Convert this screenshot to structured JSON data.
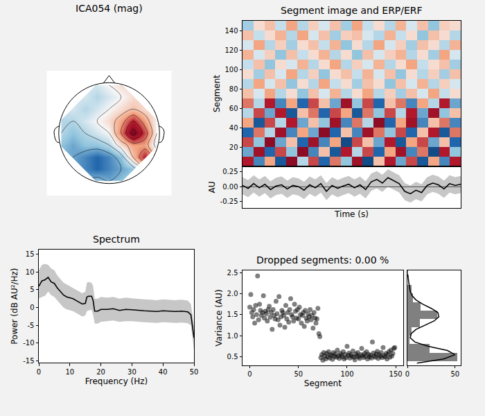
{
  "chart_data": [
    {
      "type": "contour",
      "title": "ICA054 (mag)",
      "tick_labels": false,
      "xlim": [
        -1.3,
        1.3
      ],
      "ylim": [
        -1.3,
        1.3
      ],
      "zlim": [
        -1,
        1
      ],
      "x": [
        -1,
        -0.75,
        -0.5,
        -0.25,
        0,
        0.25,
        0.5,
        0.75,
        1
      ],
      "y": [
        -1,
        -0.75,
        -0.5,
        -0.25,
        0,
        0.25,
        0.5,
        0.75,
        1
      ],
      "cells": [
        [
          null,
          null,
          null,
          -0.3,
          -0.4,
          -0.3,
          null,
          null,
          null
        ],
        [
          null,
          null,
          -0.5,
          -0.6,
          -0.5,
          -0.4,
          -0.3,
          null,
          null
        ],
        [
          null,
          -0.4,
          -0.5,
          -0.6,
          -0.5,
          -0.3,
          0.2,
          0.6,
          null
        ],
        [
          -0.3,
          -0.4,
          -0.3,
          -0.3,
          -0.2,
          0.1,
          0.3,
          0.3,
          -0.1
        ],
        [
          -0.2,
          -0.3,
          -0.2,
          -0.1,
          0.0,
          0.4,
          0.9,
          0.5,
          0.0
        ],
        [
          -0.2,
          -0.2,
          -0.1,
          0.0,
          0.1,
          0.3,
          0.6,
          0.3,
          0.0
        ],
        [
          null,
          -0.1,
          -0.2,
          -0.1,
          0.0,
          0.1,
          0.2,
          0.1,
          null
        ],
        [
          null,
          null,
          -0.1,
          -0.2,
          -0.1,
          0.0,
          0.1,
          null,
          null
        ],
        [
          null,
          null,
          null,
          -0.1,
          0.0,
          0.1,
          null,
          null,
          null
        ]
      ]
    },
    {
      "type": "heatmap",
      "title": "Segment image and ERP/ERF",
      "ylabel": "Segment",
      "tick_labels": "y",
      "xlim": [
        -0.5,
        19.5
      ],
      "ylim": [
        0,
        150
      ],
      "yticks": [
        20,
        40,
        60,
        80,
        100,
        120,
        140
      ],
      "zlim": [
        -1,
        1
      ],
      "x": [
        0,
        1,
        2,
        3,
        4,
        5,
        6,
        7,
        8,
        9,
        10,
        11,
        12,
        13,
        14,
        15,
        16,
        17,
        18,
        19
      ],
      "y": [
        5,
        15,
        25,
        35,
        45,
        55,
        65,
        75,
        85,
        95,
        105,
        115,
        125,
        135,
        145
      ],
      "cells": [
        [
          0.6,
          -0.5,
          0.3,
          -0.7,
          0.8,
          -0.2,
          0.5,
          -0.6,
          0.4,
          -0.3,
          0.7,
          -0.8,
          0.2,
          0.6,
          -0.4,
          0.5,
          -0.7,
          0.3,
          -0.5,
          0.6
        ],
        [
          -0.4,
          0.7,
          -0.6,
          0.5,
          -0.3,
          0.8,
          -0.5,
          0.2,
          -0.7,
          0.6,
          -0.2,
          0.5,
          -0.6,
          0.3,
          0.7,
          -0.5,
          0.4,
          -0.8,
          0.6,
          -0.3
        ],
        [
          0.5,
          -0.3,
          0.8,
          -0.4,
          0.2,
          -0.6,
          0.7,
          -0.5,
          0.3,
          -0.8,
          0.5,
          0.2,
          -0.4,
          0.6,
          -0.7,
          0.3,
          0.5,
          -0.4,
          0.2,
          -0.6
        ],
        [
          -0.6,
          0.4,
          -0.2,
          0.7,
          -0.5,
          0.3,
          -0.4,
          0.8,
          -0.6,
          0.2,
          -0.5,
          0.7,
          0.4,
          -0.3,
          0.5,
          -0.6,
          0.2,
          0.6,
          -0.7,
          0.4
        ],
        [
          0.3,
          -0.7,
          0.5,
          -0.2,
          0.6,
          -0.4,
          0.2,
          -0.3,
          0.7,
          -0.5,
          0.4,
          -0.2,
          0.8,
          -0.6,
          0.3,
          0.7,
          -0.5,
          0.2,
          0.4,
          -0.5
        ],
        [
          -0.2,
          0.5,
          -0.4,
          0.6,
          -0.7,
          0.2,
          0.4,
          -0.6,
          0.5,
          0.3,
          -0.7,
          0.4,
          -0.3,
          0.5,
          -0.2,
          0.6,
          -0.4,
          0.7,
          -0.3,
          0.2
        ],
        [
          0.4,
          -0.2,
          0.6,
          -0.5,
          0.3,
          -0.6,
          0.5,
          0.2,
          -0.4,
          0.7,
          -0.3,
          0.5,
          -0.6,
          0.2,
          0.4,
          -0.5,
          0.3,
          -0.2,
          0.6,
          -0.4
        ],
        [
          0.2,
          -0.1,
          0.3,
          -0.2,
          0.1,
          -0.3,
          0.2,
          -0.1,
          0.25,
          -0.2,
          0.1,
          0.3,
          -0.2,
          0.15,
          -0.25,
          0.2,
          -0.1,
          0.3,
          -0.15,
          0.1
        ],
        [
          -0.2,
          0.3,
          -0.1,
          0.2,
          -0.3,
          0.1,
          -0.2,
          0.3,
          -0.15,
          0.1,
          -0.25,
          0.2,
          0.1,
          -0.3,
          0.2,
          -0.1,
          0.25,
          -0.2,
          0.15,
          -0.1
        ],
        [
          0.1,
          -0.25,
          0.2,
          -0.1,
          0.3,
          -0.2,
          0.15,
          -0.3,
          0.1,
          0.2,
          -0.15,
          0.25,
          -0.1,
          0.2,
          -0.3,
          0.1,
          -0.2,
          0.15,
          -0.25,
          0.2
        ],
        [
          -0.15,
          0.2,
          -0.3,
          0.1,
          -0.1,
          0.25,
          -0.2,
          0.1,
          0.3,
          -0.2,
          0.15,
          -0.1,
          0.25,
          -0.2,
          0.1,
          0.3,
          -0.15,
          0.1,
          0.2,
          -0.25
        ],
        [
          0.25,
          -0.1,
          0.15,
          -0.3,
          0.2,
          -0.15,
          0.1,
          0.25,
          -0.2,
          0.1,
          -0.3,
          0.2,
          -0.1,
          0.15,
          0.25,
          -0.2,
          0.1,
          -0.25,
          0.3,
          -0.1
        ],
        [
          -0.1,
          0.3,
          -0.2,
          0.15,
          -0.25,
          0.1,
          0.2,
          -0.15,
          0.25,
          -0.3,
          0.1,
          -0.2,
          0.3,
          -0.1,
          0.15,
          -0.25,
          0.2,
          0.1,
          -0.2,
          0.25
        ],
        [
          0.2,
          -0.15,
          0.1,
          0.25,
          -0.2,
          0.3,
          -0.1,
          0.2,
          -0.25,
          0.15,
          0.2,
          -0.1,
          -0.2,
          0.25,
          -0.15,
          0.1,
          -0.3,
          0.2,
          0.1,
          -0.2
        ],
        [
          -0.25,
          0.1,
          0.2,
          -0.15,
          0.3,
          -0.2,
          0.15,
          -0.1,
          0.2,
          -0.25,
          0.3,
          -0.15,
          0.1,
          -0.2,
          0.25,
          -0.1,
          0.2,
          -0.3,
          0.15,
          0.1
        ]
      ]
    },
    {
      "type": "line",
      "xlabel": "Time (s)",
      "ylabel": "AU",
      "tick_labels": "y",
      "color": "#000000",
      "xlim": [
        0,
        39
      ],
      "ylim": [
        -0.36,
        0.34
      ],
      "yticks": [
        -0.25,
        {
          "value": 0,
          "label": "0.00"
        },
        0.25
      ],
      "x": [
        0,
        1,
        2,
        3,
        4,
        5,
        6,
        7,
        8,
        9,
        10,
        11,
        12,
        13,
        14,
        15,
        16,
        17,
        18,
        19,
        20,
        21,
        22,
        23,
        24,
        25,
        26,
        27,
        28,
        29,
        30,
        31,
        32,
        33,
        34,
        35,
        36,
        37,
        38,
        39
      ],
      "values": [
        0.02,
        -0.03,
        0.05,
        -0.02,
        0.04,
        -0.05,
        0.01,
        0.03,
        -0.04,
        0.02,
        0.0,
        -0.06,
        0.03,
        -0.02,
        0.05,
        -0.08,
        0.02,
        -0.03,
        0.01,
        0.04,
        -0.02,
        0.03,
        -0.05,
        0.08,
        0.12,
        0.06,
        0.15,
        0.1,
        0.05,
        -0.08,
        -0.12,
        -0.06,
        -0.1,
        0.02,
        0.06,
        0.03,
        -0.04,
        0.05,
        0.02,
        0.04
      ],
      "upper": [
        0.16,
        0.11,
        0.19,
        0.12,
        0.18,
        0.09,
        0.15,
        0.17,
        0.1,
        0.16,
        0.14,
        0.08,
        0.17,
        0.12,
        0.19,
        0.06,
        0.16,
        0.11,
        0.15,
        0.18,
        0.12,
        0.17,
        0.09,
        0.22,
        0.26,
        0.2,
        0.29,
        0.24,
        0.19,
        0.06,
        0.02,
        0.08,
        0.04,
        0.16,
        0.2,
        0.17,
        0.1,
        0.19,
        0.16,
        0.18
      ],
      "lower": [
        -0.13,
        -0.18,
        -0.1,
        -0.17,
        -0.11,
        -0.2,
        -0.14,
        -0.12,
        -0.19,
        -0.13,
        -0.15,
        -0.21,
        -0.12,
        -0.17,
        -0.1,
        -0.23,
        -0.13,
        -0.18,
        -0.14,
        -0.11,
        -0.17,
        -0.12,
        -0.2,
        -0.07,
        -0.03,
        -0.09,
        0.0,
        -0.05,
        -0.1,
        -0.23,
        -0.27,
        -0.21,
        -0.25,
        -0.13,
        -0.09,
        -0.12,
        -0.19,
        -0.1,
        -0.13,
        -0.11
      ]
    },
    {
      "type": "line",
      "title": "Spectrum",
      "xlabel": "Frequency (Hz)",
      "ylabel": "Power (dB AU²/Hz)",
      "color": "#000000",
      "xlim": [
        0,
        50
      ],
      "ylim": [
        -15.5,
        16.3
      ],
      "xticks": [
        0,
        10,
        20,
        30,
        40,
        50
      ],
      "yticks": [
        -15,
        -10,
        -5,
        0,
        5,
        10,
        15
      ],
      "x": [
        0,
        1,
        2,
        3,
        4,
        5,
        6,
        7,
        8,
        9,
        10,
        11,
        12,
        13,
        14,
        15,
        15.5,
        16,
        17,
        17.5,
        18,
        19,
        20,
        22,
        24,
        26,
        28,
        30,
        32,
        34,
        36,
        38,
        40,
        42,
        44,
        46,
        48,
        49,
        50
      ],
      "values": [
        6,
        7.5,
        7.8,
        8.5,
        7.2,
        6.8,
        5.5,
        4.5,
        3.5,
        3,
        2.8,
        2.5,
        2,
        1.5,
        1,
        1.2,
        3,
        3.2,
        3.2,
        2,
        -1,
        -1,
        -0.5,
        -0.5,
        -0.3,
        -0.8,
        -0.5,
        -0.6,
        -0.8,
        -0.9,
        -1,
        -1.1,
        -0.9,
        -1,
        -1.1,
        -1,
        -1.2,
        -2,
        -8.5
      ],
      "upper": [
        10.5,
        12,
        12.3,
        12,
        11,
        10.5,
        9,
        8,
        7,
        6.5,
        6,
        5.5,
        5,
        4.5,
        4,
        4.5,
        7,
        7.2,
        7,
        6,
        2.5,
        2.5,
        3,
        2.8,
        3,
        2.5,
        2.8,
        2.6,
        2.4,
        2.3,
        2.2,
        2.1,
        2.3,
        2.2,
        2.1,
        2.2,
        2,
        1,
        -5
      ],
      "lower": [
        2.5,
        3,
        3.3,
        4.5,
        3.5,
        3,
        2,
        1,
        0,
        -0.5,
        -0.8,
        -1,
        -1.5,
        -2,
        -2.5,
        -2.2,
        -1,
        -0.8,
        -0.6,
        -2,
        -4.5,
        -4.5,
        -4,
        -3.8,
        -3.6,
        -4,
        -3.8,
        -3.8,
        -4,
        -4.1,
        -4.2,
        -4.3,
        -4.1,
        -4.2,
        -4.3,
        -4.2,
        -4.4,
        -5,
        -12
      ]
    },
    {
      "type": "scatter",
      "title": "Dropped segments: 0.00 %",
      "xlabel": "Segment",
      "ylabel": "Variance (AU)",
      "color": "#000000",
      "marker": "circle",
      "xlim": [
        -7.5,
        157.5
      ],
      "ylim": [
        0.3,
        2.55
      ],
      "xticks": [
        0,
        50,
        100,
        150
      ],
      "yticks": [
        0.5,
        {
          "value": 1,
          "label": "1.0"
        },
        1.5,
        {
          "value": 2,
          "label": "2.0"
        },
        2.5
      ],
      "x": [
        0,
        1,
        2,
        3,
        4,
        5,
        6,
        7,
        8,
        9,
        10,
        11,
        12,
        13,
        14,
        15,
        16,
        17,
        18,
        19,
        20,
        21,
        22,
        23,
        24,
        25,
        26,
        27,
        28,
        29,
        30,
        31,
        32,
        33,
        34,
        35,
        36,
        37,
        38,
        39,
        40,
        41,
        42,
        43,
        44,
        45,
        46,
        47,
        48,
        49,
        50,
        51,
        52,
        53,
        54,
        55,
        56,
        57,
        58,
        59,
        60,
        61,
        62,
        63,
        64,
        65,
        66,
        67,
        68,
        69,
        70,
        71,
        72,
        73,
        74,
        75,
        76,
        77,
        78,
        79,
        80,
        81,
        82,
        83,
        84,
        85,
        86,
        87,
        88,
        89,
        90,
        91,
        92,
        93,
        94,
        95,
        96,
        97,
        98,
        99,
        100,
        101,
        102,
        103,
        104,
        105,
        106,
        107,
        108,
        109,
        110,
        111,
        112,
        113,
        114,
        115,
        116,
        117,
        118,
        119,
        120,
        121,
        122,
        123,
        124,
        125,
        126,
        127,
        128,
        129,
        130,
        131,
        132,
        133,
        134,
        135,
        136,
        137,
        138,
        139,
        140,
        141,
        142,
        143,
        144,
        145,
        146,
        147,
        148,
        149
      ],
      "values": [
        1.68,
        1.98,
        1.55,
        1.45,
        1.62,
        1.3,
        1.72,
        1.5,
        2.42,
        1.38,
        1.75,
        1.6,
        1.48,
        1.55,
        1.95,
        1.42,
        1.58,
        1.52,
        1.35,
        1.62,
        1.7,
        1.44,
        1.55,
        1.15,
        1.62,
        1.48,
        1.4,
        1.82,
        1.52,
        1.38,
        1.93,
        1.25,
        1.45,
        1.6,
        1.55,
        1.48,
        1.2,
        1.72,
        1.4,
        1.55,
        1.32,
        1.62,
        1.88,
        1.5,
        1.45,
        1.35,
        1.75,
        1.58,
        1.42,
        1.62,
        1.4,
        1.68,
        1.5,
        1.3,
        1.48,
        1.55,
        1.22,
        1.6,
        1.42,
        1.35,
        1.52,
        1.45,
        1.62,
        1.38,
        1.48,
        1.18,
        1.55,
        1.42,
        1.3,
        1.4,
        1.65,
        1.05,
        0.98,
        0.48,
        0.55,
        0.42,
        0.6,
        0.52,
        0.45,
        0.58,
        0.5,
        0.62,
        0.47,
        0.55,
        0.53,
        0.44,
        0.6,
        0.51,
        0.57,
        0.49,
        0.66,
        0.52,
        0.46,
        0.58,
        0.54,
        0.5,
        0.62,
        0.45,
        0.56,
        0.48,
        0.75,
        0.53,
        0.59,
        0.47,
        0.55,
        0.51,
        0.64,
        0.49,
        0.43,
        0.57,
        0.52,
        0.6,
        0.5,
        0.46,
        0.55,
        0.7,
        0.53,
        0.48,
        0.58,
        0.51,
        0.62,
        0.45,
        0.56,
        0.5,
        0.54,
        0.47,
        0.85,
        0.59,
        0.52,
        0.49,
        0.57,
        0.63,
        0.46,
        0.55,
        0.51,
        0.6,
        0.48,
        0.72,
        0.53,
        0.5,
        0.58,
        0.45,
        0.56,
        0.62,
        0.49,
        0.66,
        0.52,
        0.58,
        0.7,
        0.72
      ]
    },
    {
      "type": "histogram",
      "orientation": "horizontal",
      "tick_labels": "x",
      "color": "#808080",
      "xlim": [
        0,
        56
      ],
      "ylim": [
        0.3,
        2.55
      ],
      "xticks": [
        0,
        50
      ],
      "bins": [
        0.4,
        0.6,
        0.8,
        1.0,
        1.2,
        1.4,
        1.6,
        1.8,
        2.0,
        2.2,
        2.4,
        2.6
      ],
      "counts": [
        52,
        23,
        2,
        4,
        13,
        31,
        14,
        6,
        4,
        0,
        1
      ],
      "kde": {
        "y": [
          0.35,
          0.45,
          0.55,
          0.65,
          0.75,
          0.85,
          0.95,
          1.05,
          1.15,
          1.25,
          1.35,
          1.45,
          1.55,
          1.65,
          1.75,
          1.85,
          1.95,
          2.05,
          2.15,
          2.25,
          2.35,
          2.45
        ],
        "x": [
          10,
          38,
          50,
          42,
          22,
          8,
          3,
          4,
          9,
          18,
          28,
          33,
          32,
          25,
          16,
          9,
          5,
          3,
          2,
          1.5,
          1,
          0.5
        ],
        "color": "#000000"
      }
    }
  ]
}
